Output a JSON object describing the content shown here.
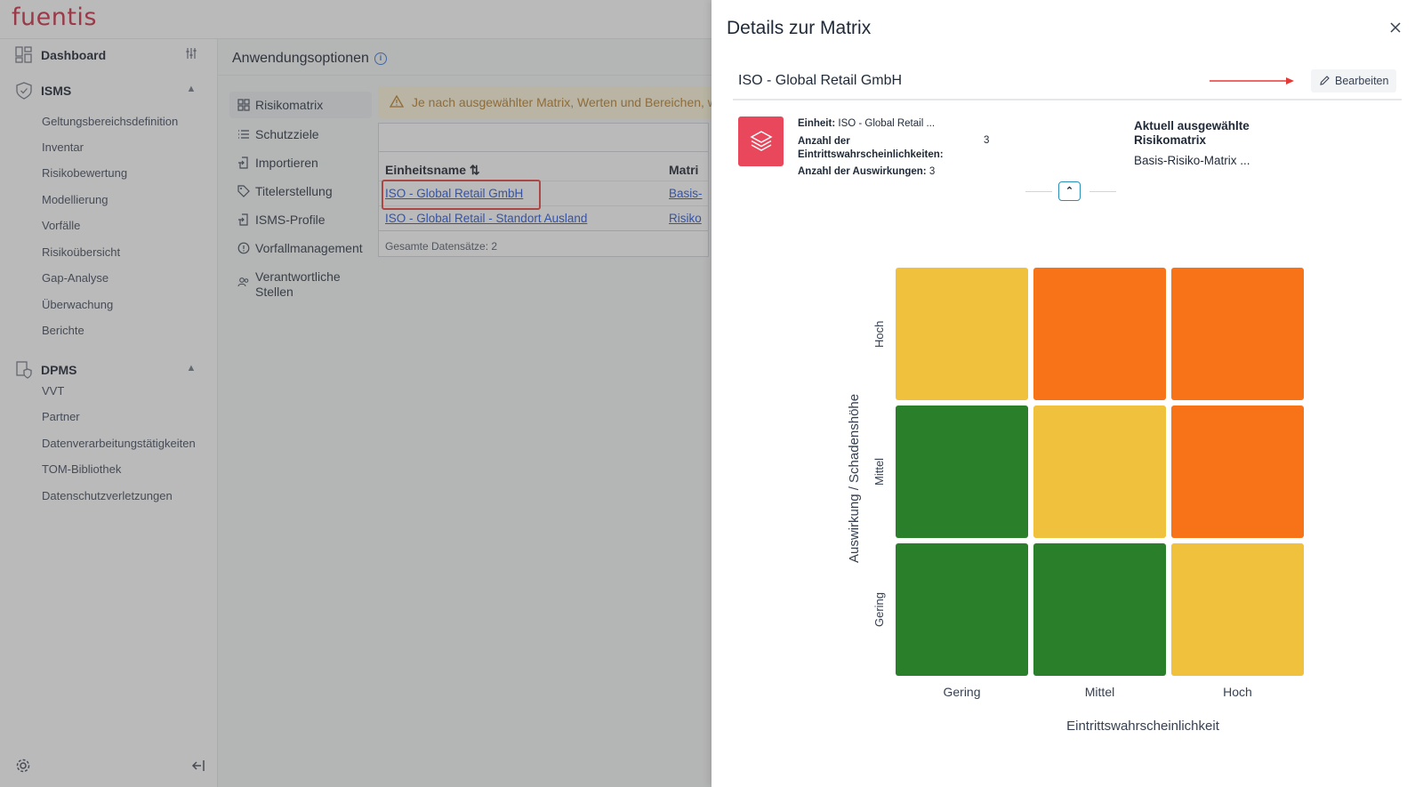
{
  "app": {
    "logo": "fuentis"
  },
  "sidebar": {
    "dashboard": "Dashboard",
    "isms": {
      "label": "ISMS",
      "items": [
        "Geltungsbereichsdefinition",
        "Inventar",
        "Risikobewertung",
        "Modellierung",
        "Vorfälle",
        "Risikoübersicht",
        "Gap-Analyse",
        "Überwachung",
        "Berichte"
      ]
    },
    "dpms": {
      "label": "DPMS",
      "items": [
        "VVT",
        "Partner",
        "Datenverarbeitungstätigkeiten",
        "TOM-Bibliothek",
        "Datenschutzverletzungen"
      ]
    }
  },
  "main": {
    "title": "Anwendungsoptionen",
    "subnav": [
      "Risikomatrix",
      "Schutzziele",
      "Importieren",
      "Titelerstellung",
      "ISMS-Profile",
      "Vorfallmanagement",
      "Verantwortliche Stellen"
    ],
    "alert": "Je nach ausgewählter Matrix, Werten und Bereichen, w",
    "table": {
      "col1": "Einheitsname",
      "col2": "Matri",
      "rows": [
        {
          "name": "ISO - Global Retail GmbH",
          "matrix": "Basis-"
        },
        {
          "name": "ISO - Global Retail - Standort Ausland",
          "matrix": "Risiko"
        }
      ],
      "footer": "Gesamte Datensätze: 2"
    }
  },
  "drawer": {
    "title": "Details zur Matrix",
    "unit_name": "ISO - Global Retail GmbH",
    "edit_label": "Bearbeiten",
    "info": {
      "einheit_label": "Einheit:",
      "einheit_value": "ISO - Global Retail ...",
      "anzahl_e_label": "Anzahl der Eintrittswahrscheinlichkeiten:",
      "anzahl_e_value": "3",
      "anzahl_a_label": "Anzahl der Auswirkungen:",
      "anzahl_a_value": "3"
    },
    "current_matrix_label": "Aktuell ausgewählte Risikomatrix",
    "current_matrix_value": "Basis-Risiko-Matrix ..."
  },
  "colors": {
    "green": "#2a7f2a",
    "yellow": "#efc13c",
    "orange": "#f87318",
    "accent_red": "#e8475c",
    "link": "#1d4ed8"
  },
  "chart_data": {
    "type": "heatmap",
    "xlabel": "Eintrittswahrscheinlichkeit",
    "ylabel": "Auswirkung / Schadenshöhe",
    "x_categories": [
      "Gering",
      "Mittel",
      "Hoch"
    ],
    "y_categories": [
      "Gering",
      "Mittel",
      "Hoch"
    ],
    "cells_top_to_bottom": [
      [
        "yellow",
        "orange",
        "orange"
      ],
      [
        "green",
        "yellow",
        "orange"
      ],
      [
        "green",
        "green",
        "yellow"
      ]
    ]
  }
}
